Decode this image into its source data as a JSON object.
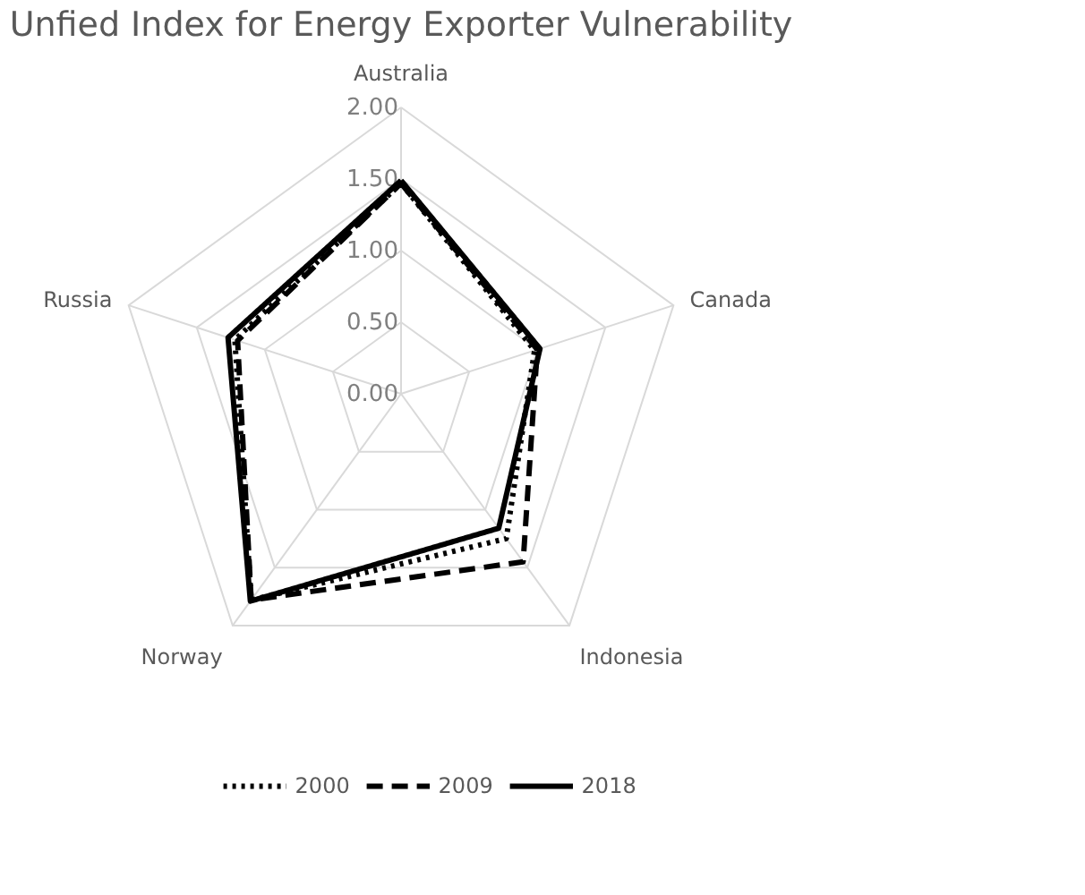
{
  "chart_data": {
    "type": "radar",
    "title": "Unfied Index for Energy Exporter Vulnerability",
    "categories": [
      "Australia",
      "Canada",
      "Indonesia",
      "Norway",
      "Russia"
    ],
    "ylim": [
      0,
      2
    ],
    "yticks": [
      {
        "value": 0,
        "label": "0.00"
      },
      {
        "value": 0.5,
        "label": "0.50"
      },
      {
        "value": 1,
        "label": "1.00"
      },
      {
        "value": 1.5,
        "label": "1.50"
      },
      {
        "value": 2,
        "label": "2.00"
      }
    ],
    "grid": true,
    "legend": "bottom",
    "marker": "none",
    "series": [
      {
        "name": "2000",
        "color": "#000000",
        "line_style": "dotted",
        "values": [
          1.47,
          0.98,
          1.25,
          1.78,
          1.22
        ]
      },
      {
        "name": "2009",
        "color": "#000000",
        "line_style": "dashed",
        "values": [
          1.47,
          1.0,
          1.45,
          1.78,
          1.2
        ]
      },
      {
        "name": "2018",
        "color": "#000000",
        "line_style": "solid",
        "values": [
          1.49,
          1.02,
          1.16,
          1.79,
          1.27
        ]
      }
    ]
  }
}
